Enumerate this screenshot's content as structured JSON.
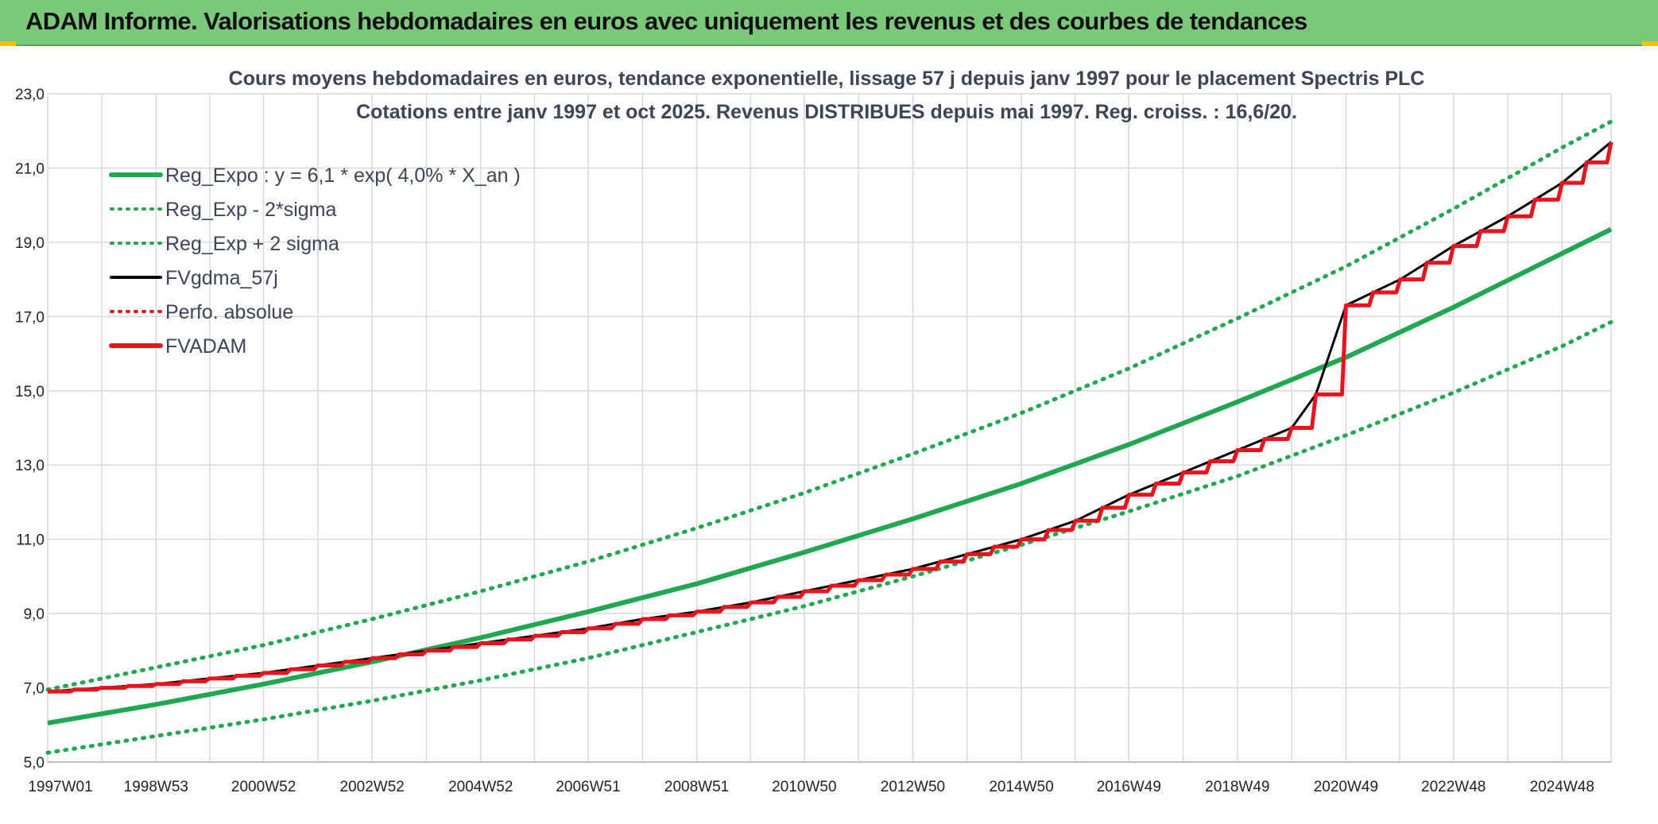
{
  "header": {
    "title": "ADAM Informe. Valorisations hebdomadaires en euros avec uniquement les revenus et des courbes de tendances"
  },
  "colors": {
    "header_bg": "#7bc87b",
    "reg_green": "#1fa84f",
    "fvadam_red": "#e8141c",
    "fvgdma_black": "#000000",
    "perfo_red": "#e8141c",
    "grid": "#d9d9d9"
  },
  "chart_data": {
    "type": "line",
    "title_lines": [
      "Cours moyens hebdomadaires en euros, tendance exponentielle, lissage 57 j depuis janv 1997 pour le placement Spectris PLC",
      "Cotations entre janv 1997 et oct 2025. Revenus DISTRIBUES depuis mai 1997. Reg. croiss. : 16,6/20."
    ],
    "ylim": [
      5.0,
      23.0
    ],
    "y_ticks": [
      "5,0",
      "7,0",
      "9,0",
      "11,0",
      "13,0",
      "15,0",
      "17,0",
      "19,0",
      "21,0",
      "23,0"
    ],
    "x_ticks": [
      "1997W01",
      "1998W53",
      "2000W52",
      "2002W52",
      "2004W52",
      "2006W51",
      "2008W51",
      "2010W50",
      "2012W50",
      "2014W50",
      "2016W49",
      "2018W49",
      "2020W49",
      "2022W48",
      "2024W48"
    ],
    "xlim": [
      "1997W01",
      "2025W43"
    ],
    "grid": true,
    "legend_position": "top-left",
    "legend": [
      {
        "label": "Reg_Expo : y = 6,1 * exp( 4,0% *  X_an )",
        "color": "#1fa84f",
        "style": "solid-thick"
      },
      {
        "label": "Reg_Exp - 2*sigma",
        "color": "#1fa84f",
        "style": "dotted"
      },
      {
        "label": "Reg_Exp + 2 sigma",
        "color": "#1fa84f",
        "style": "dotted"
      },
      {
        "label": "FVgdma_57j",
        "color": "#000000",
        "style": "solid"
      },
      {
        "label": "Perfo. absolue",
        "color": "#e8141c",
        "style": "dotted"
      },
      {
        "label": "FVADAM",
        "color": "#e8141c",
        "style": "solid-thick"
      }
    ],
    "series": [
      {
        "name": "Reg_Expo : y = 6,1 * exp( 4,0% *  X_an )",
        "x": [
          "1997W01",
          "1998W53",
          "2000W52",
          "2002W52",
          "2004W52",
          "2006W51",
          "2008W51",
          "2010W50",
          "2012W50",
          "2014W50",
          "2016W49",
          "2018W49",
          "2020W49",
          "2022W48",
          "2024W48",
          "2025W43"
        ],
        "values": [
          6.05,
          6.55,
          7.1,
          7.7,
          8.35,
          9.05,
          9.8,
          10.65,
          11.55,
          12.5,
          13.55,
          14.7,
          15.9,
          17.25,
          18.7,
          19.35
        ]
      },
      {
        "name": "Reg_Exp - 2*sigma",
        "x": [
          "1997W01",
          "1998W53",
          "2000W52",
          "2002W52",
          "2004W52",
          "2006W51",
          "2008W51",
          "2010W50",
          "2012W50",
          "2014W50",
          "2016W49",
          "2018W49",
          "2020W49",
          "2022W48",
          "2024W48",
          "2025W43"
        ],
        "values": [
          5.25,
          5.7,
          6.15,
          6.65,
          7.2,
          7.8,
          8.5,
          9.2,
          10.0,
          10.85,
          11.75,
          12.7,
          13.8,
          14.95,
          16.2,
          16.85
        ]
      },
      {
        "name": "Reg_Exp + 2 sigma",
        "x": [
          "1997W01",
          "1998W53",
          "2000W52",
          "2002W52",
          "2004W52",
          "2006W51",
          "2008W51",
          "2010W50",
          "2012W50",
          "2014W50",
          "2016W49",
          "2018W49",
          "2020W49",
          "2022W48",
          "2024W48",
          "2025W43"
        ],
        "values": [
          6.95,
          7.55,
          8.15,
          8.85,
          9.6,
          10.4,
          11.3,
          12.25,
          13.3,
          14.4,
          15.6,
          16.95,
          18.35,
          19.9,
          21.55,
          22.25
        ]
      },
      {
        "name": "FVADAM",
        "x": [
          "1997W01",
          "1997W52",
          "1998W53",
          "1999W52",
          "2000W52",
          "2001W52",
          "2002W52",
          "2003W52",
          "2004W52",
          "2005W52",
          "2006W51",
          "2007W51",
          "2008W51",
          "2009W51",
          "2010W50",
          "2011W50",
          "2012W50",
          "2013W50",
          "2014W50",
          "2015W50",
          "2016W49",
          "2017W49",
          "2018W49",
          "2019W49",
          "2020W20",
          "2020W49",
          "2021W49",
          "2022W48",
          "2023W48",
          "2024W48",
          "2025W43"
        ],
        "values": [
          6.9,
          7.0,
          7.1,
          7.25,
          7.4,
          7.6,
          7.8,
          8.0,
          8.2,
          8.4,
          8.6,
          8.85,
          9.05,
          9.3,
          9.6,
          9.9,
          10.2,
          10.6,
          11.0,
          11.5,
          12.2,
          12.8,
          13.4,
          14.0,
          14.9,
          17.3,
          18.0,
          18.9,
          19.7,
          20.6,
          21.7
        ]
      }
    ]
  }
}
